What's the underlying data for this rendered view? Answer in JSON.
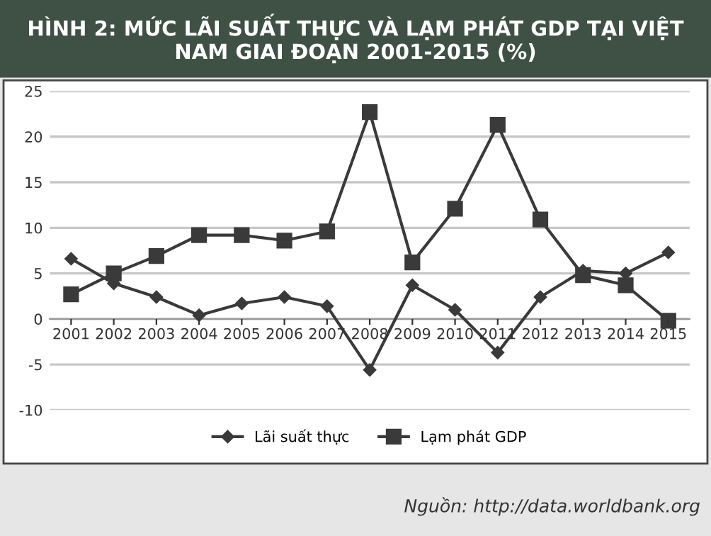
{
  "chart_data": {
    "type": "line",
    "title": "HÌNH 2: MỨC LÃI SUẤT THỰC VÀ LẠM PHÁT GDP TẠI VIỆT NAM GIAI ĐOẠN 2001-2015 (%)",
    "categories": [
      "2001",
      "2002",
      "2003",
      "2004",
      "2005",
      "2006",
      "2007",
      "2008",
      "2009",
      "2010",
      "2011",
      "2012",
      "2013",
      "2014",
      "2015"
    ],
    "series": [
      {
        "name": "Lãi suất thực",
        "color": "#3a3a3a",
        "marker": "diamond",
        "values": [
          6.6,
          3.9,
          2.4,
          0.4,
          1.7,
          2.4,
          1.4,
          -5.6,
          3.7,
          1.0,
          -3.7,
          2.4,
          5.3,
          5.0,
          7.3
        ]
      },
      {
        "name": "Lạm phát GDP",
        "color": "#3a3a3a",
        "marker": "square",
        "values": [
          2.7,
          5.0,
          6.9,
          9.2,
          9.2,
          8.6,
          9.6,
          22.7,
          6.2,
          12.1,
          21.3,
          10.9,
          4.8,
          3.7,
          -0.2
        ]
      }
    ],
    "ylim": [
      -10,
      25
    ],
    "yticks": [
      -10,
      -5,
      0,
      5,
      10,
      15,
      20,
      25
    ],
    "grid": "y",
    "legend": "bottom",
    "line_style": "solid",
    "annotations": [
      "Nguồn: http://data.worldbank.org"
    ]
  }
}
